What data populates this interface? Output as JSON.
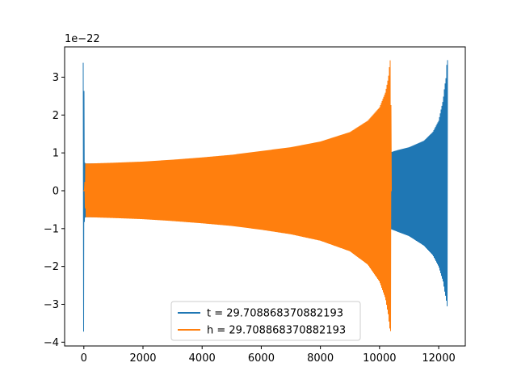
{
  "chart_data": {
    "type": "line",
    "title": "",
    "xlabel": "",
    "ylabel": "",
    "offset_text": "1e−22",
    "xlim": [
      -650,
      12900
    ],
    "ylim": [
      -4.1,
      3.8
    ],
    "xticks": [
      0,
      2000,
      4000,
      6000,
      8000,
      10000,
      12000
    ],
    "xtick_labels": [
      "0",
      "2000",
      "4000",
      "6000",
      "8000",
      "10000",
      "12000"
    ],
    "yticks": [
      -4,
      -3,
      -2,
      -1,
      0,
      1,
      2,
      3
    ],
    "ytick_labels": [
      "−4",
      "−3",
      "−2",
      "−1",
      "0",
      "1",
      "2",
      "3"
    ],
    "legend_position": "lower center",
    "series": [
      {
        "name": "t = 29.708868370882193",
        "color": "#1f77b4",
        "envelope": {
          "x": [
            0,
            20,
            60,
            200,
            1000,
            2000,
            3000,
            4000,
            5000,
            6000,
            7000,
            8000,
            9000,
            10000,
            10400,
            10500,
            11000,
            11500,
            11800,
            12000,
            12150,
            12200,
            12250,
            12280
          ],
          "upper": [
            3.38,
            0.75,
            0.72,
            0.72,
            0.72,
            0.73,
            0.76,
            0.8,
            0.86,
            0.93,
            1.0,
            1.05,
            1.0,
            1.02,
            1.02,
            1.05,
            1.15,
            1.32,
            1.55,
            1.85,
            2.4,
            2.75,
            3.0,
            3.45
          ],
          "lower": [
            -3.72,
            -0.72,
            -0.7,
            -0.7,
            -0.7,
            -0.72,
            -0.75,
            -0.78,
            -0.83,
            -0.9,
            -0.98,
            -1.03,
            -1.0,
            -1.0,
            -1.02,
            -1.05,
            -1.2,
            -1.45,
            -1.7,
            -2.0,
            -2.4,
            -2.65,
            -2.85,
            -3.05
          ]
        }
      },
      {
        "name": "h = 29.708868370882193",
        "color": "#ff7f0e",
        "envelope": {
          "x": [
            0,
            20,
            60,
            200,
            1000,
            2000,
            3000,
            4000,
            5000,
            6000,
            7000,
            8000,
            9000,
            9600,
            10000,
            10200,
            10300,
            10330,
            10360,
            10380,
            10400
          ],
          "upper": [
            0.0,
            0.0,
            0.72,
            0.72,
            0.74,
            0.77,
            0.82,
            0.88,
            0.95,
            1.05,
            1.15,
            1.3,
            1.55,
            1.85,
            2.2,
            2.6,
            3.0,
            3.25,
            3.45,
            3.4,
            0.0
          ],
          "lower": [
            0.0,
            0.0,
            -0.7,
            -0.7,
            -0.72,
            -0.75,
            -0.8,
            -0.86,
            -0.93,
            -1.03,
            -1.15,
            -1.32,
            -1.6,
            -1.95,
            -2.4,
            -2.85,
            -3.3,
            -3.55,
            -3.72,
            -3.7,
            0.0
          ]
        }
      }
    ]
  }
}
